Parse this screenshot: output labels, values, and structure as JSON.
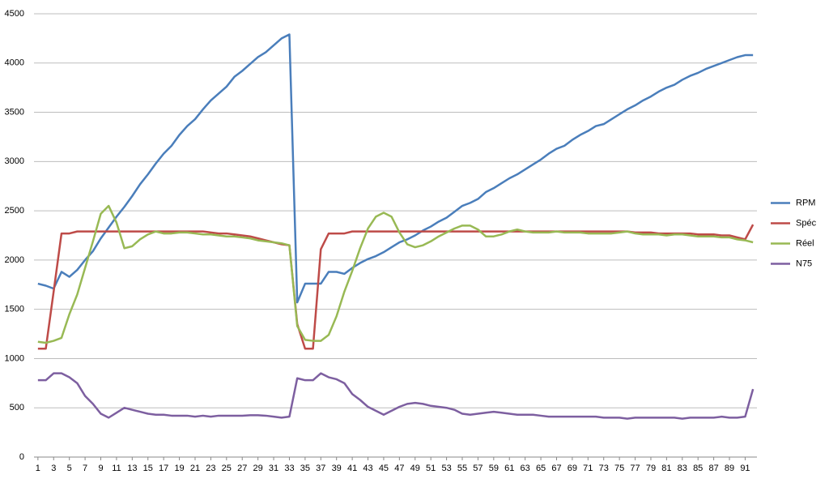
{
  "chart_data": {
    "type": "line",
    "x": [
      1,
      2,
      3,
      4,
      5,
      6,
      7,
      8,
      9,
      10,
      11,
      12,
      13,
      14,
      15,
      16,
      17,
      18,
      19,
      20,
      21,
      22,
      23,
      24,
      25,
      26,
      27,
      28,
      29,
      30,
      31,
      32,
      33,
      34,
      35,
      36,
      37,
      38,
      39,
      40,
      41,
      42,
      43,
      44,
      45,
      46,
      47,
      48,
      49,
      50,
      51,
      52,
      53,
      54,
      55,
      56,
      57,
      58,
      59,
      60,
      61,
      62,
      63,
      64,
      65,
      66,
      67,
      68,
      69,
      70,
      71,
      72,
      73,
      74,
      75,
      76,
      77,
      78,
      79,
      80,
      81,
      82,
      83,
      84,
      85,
      86,
      87,
      88,
      89,
      90,
      91,
      92
    ],
    "xlim": [
      0.5,
      92.5
    ],
    "xticks": [
      1,
      3,
      5,
      7,
      9,
      11,
      13,
      15,
      17,
      19,
      21,
      23,
      25,
      27,
      29,
      31,
      33,
      35,
      37,
      39,
      41,
      43,
      45,
      47,
      49,
      51,
      53,
      55,
      57,
      59,
      61,
      63,
      65,
      67,
      69,
      71,
      73,
      75,
      77,
      79,
      81,
      83,
      85,
      87,
      89,
      91
    ],
    "ylim": [
      0,
      4500
    ],
    "yticks": [
      0,
      500,
      1000,
      1500,
      2000,
      2500,
      3000,
      3500,
      4000,
      4500
    ],
    "grid": true,
    "legend": "right",
    "series": [
      {
        "name": "RPM",
        "color": "#4a7ebb",
        "values": [
          1760,
          1740,
          1710,
          1880,
          1830,
          1900,
          2000,
          2090,
          2220,
          2330,
          2440,
          2540,
          2650,
          2770,
          2870,
          2980,
          3080,
          3160,
          3270,
          3360,
          3430,
          3530,
          3620,
          3690,
          3760,
          3860,
          3920,
          3990,
          4060,
          4110,
          4180,
          4250,
          4290,
          1570,
          1760,
          1760,
          1760,
          1880,
          1880,
          1860,
          1920,
          1970,
          2010,
          2040,
          2080,
          2130,
          2180,
          2210,
          2250,
          2300,
          2340,
          2390,
          2430,
          2490,
          2550,
          2580,
          2620,
          2690,
          2730,
          2780,
          2830,
          2870,
          2920,
          2970,
          3020,
          3080,
          3130,
          3160,
          3220,
          3270,
          3310,
          3360,
          3380,
          3430,
          3480,
          3530,
          3570,
          3620,
          3660,
          3710,
          3750,
          3780,
          3830,
          3870,
          3900,
          3940,
          3970,
          4000,
          4030,
          4060,
          4080,
          4080
        ]
      },
      {
        "name": "Spéc",
        "color": "#be4b48",
        "values": [
          1100,
          1100,
          1680,
          2270,
          2270,
          2290,
          2290,
          2290,
          2290,
          2290,
          2290,
          2290,
          2290,
          2290,
          2290,
          2290,
          2290,
          2290,
          2290,
          2290,
          2290,
          2290,
          2280,
          2270,
          2270,
          2260,
          2250,
          2240,
          2220,
          2200,
          2180,
          2160,
          2150,
          1350,
          1100,
          1100,
          2110,
          2270,
          2270,
          2270,
          2290,
          2290,
          2290,
          2290,
          2290,
          2290,
          2290,
          2290,
          2290,
          2290,
          2290,
          2290,
          2290,
          2290,
          2290,
          2290,
          2290,
          2290,
          2290,
          2290,
          2290,
          2290,
          2290,
          2290,
          2290,
          2290,
          2290,
          2290,
          2290,
          2290,
          2290,
          2290,
          2290,
          2290,
          2290,
          2290,
          2280,
          2280,
          2280,
          2270,
          2270,
          2270,
          2270,
          2270,
          2260,
          2260,
          2260,
          2250,
          2250,
          2230,
          2210,
          2360
        ]
      },
      {
        "name": "Réel",
        "color": "#98b954",
        "values": [
          1170,
          1160,
          1180,
          1210,
          1450,
          1650,
          1920,
          2190,
          2470,
          2550,
          2380,
          2120,
          2140,
          2210,
          2260,
          2290,
          2270,
          2270,
          2280,
          2280,
          2270,
          2260,
          2260,
          2250,
          2240,
          2240,
          2230,
          2220,
          2200,
          2190,
          2180,
          2170,
          2150,
          1330,
          1190,
          1180,
          1180,
          1240,
          1430,
          1680,
          1890,
          2120,
          2320,
          2440,
          2480,
          2440,
          2280,
          2160,
          2130,
          2150,
          2190,
          2240,
          2280,
          2320,
          2350,
          2350,
          2310,
          2240,
          2240,
          2260,
          2290,
          2310,
          2290,
          2280,
          2280,
          2280,
          2290,
          2280,
          2280,
          2280,
          2270,
          2270,
          2270,
          2270,
          2280,
          2290,
          2270,
          2260,
          2260,
          2260,
          2250,
          2260,
          2260,
          2250,
          2240,
          2240,
          2240,
          2230,
          2230,
          2210,
          2200,
          2180
        ]
      },
      {
        "name": "N75",
        "color": "#7d5fa0",
        "values": [
          780,
          780,
          850,
          850,
          810,
          750,
          620,
          540,
          440,
          400,
          450,
          500,
          480,
          460,
          440,
          430,
          430,
          420,
          420,
          420,
          410,
          420,
          410,
          420,
          420,
          420,
          420,
          425,
          425,
          420,
          410,
          400,
          410,
          800,
          780,
          780,
          850,
          810,
          790,
          750,
          640,
          580,
          510,
          470,
          430,
          470,
          510,
          540,
          550,
          540,
          520,
          510,
          500,
          480,
          440,
          430,
          440,
          450,
          460,
          450,
          440,
          430,
          430,
          430,
          420,
          410,
          410,
          410,
          410,
          410,
          410,
          410,
          400,
          400,
          400,
          390,
          400,
          400,
          400,
          400,
          400,
          400,
          390,
          400,
          400,
          400,
          400,
          410,
          400,
          400,
          410,
          690
        ]
      }
    ]
  }
}
